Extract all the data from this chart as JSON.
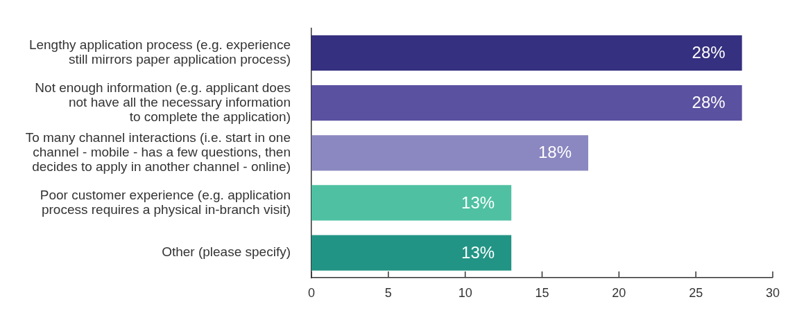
{
  "chart_data": {
    "type": "bar",
    "orientation": "horizontal",
    "categories": [
      "Lengthy application process (e.g. experience\nstill mirrors paper application process)",
      "Not enough information (e.g. applicant does\nnot have all the necessary information\nto complete the application)",
      "To many channel interactions (i.e. start in one\nchannel - mobile - has a few questions, then\ndecides to apply in another channel - online)",
      "Poor customer experience (e.g. application\nprocess requires a physical in-branch visit)",
      "Other (please specify)"
    ],
    "values": [
      28,
      28,
      18,
      13,
      13
    ],
    "colors": [
      "#35307f",
      "#5a51a0",
      "#8b87c0",
      "#4fc1a2",
      "#229485"
    ],
    "value_labels": [
      "28%",
      "28%",
      "18%",
      "13%",
      "13%"
    ],
    "xlim": [
      0,
      30
    ],
    "xticks": [
      0,
      5,
      10,
      15,
      20,
      25,
      30
    ],
    "grid": false,
    "legend": false
  }
}
